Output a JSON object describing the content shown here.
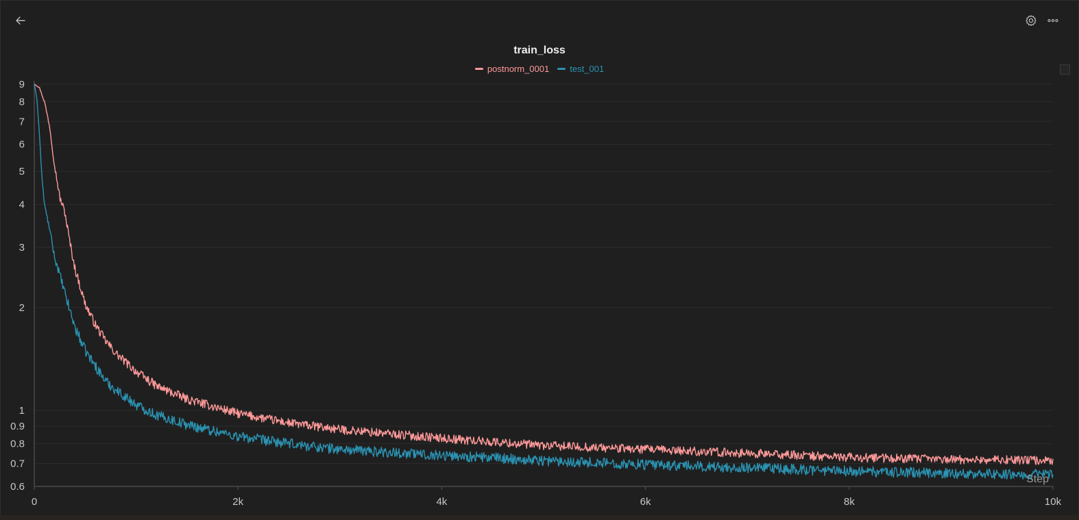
{
  "header": {
    "back_icon": "arrow-left-icon",
    "settings_icon": "gear-icon",
    "more_icon": "more-horizontal-icon"
  },
  "chart_data": {
    "type": "line",
    "title": "train_loss",
    "xlabel": "Step",
    "ylabel": "",
    "yscale": "log",
    "xlim": [
      0,
      10000
    ],
    "ylim": [
      0.6,
      9.2
    ],
    "x_ticks": [
      0,
      2000,
      4000,
      6000,
      8000,
      10000
    ],
    "x_tick_labels": [
      "0",
      "2k",
      "4k",
      "6k",
      "8k",
      "10k"
    ],
    "y_ticks": [
      0.6,
      0.7,
      0.8,
      0.9,
      1,
      2,
      3,
      4,
      5,
      6,
      7,
      8,
      9
    ],
    "y_tick_labels": [
      "0.6",
      "0.7",
      "0.8",
      "0.9",
      "1",
      "2",
      "3",
      "4",
      "5",
      "6",
      "7",
      "8",
      "9"
    ],
    "grid": true,
    "legend_position": "top-center",
    "series": [
      {
        "name": "postnorm_0001",
        "color": "#ff9a9a",
        "noise": 0.03,
        "x": [
          0,
          50,
          100,
          150,
          200,
          250,
          300,
          350,
          400,
          500,
          600,
          700,
          800,
          1000,
          1200,
          1500,
          2000,
          2500,
          3000,
          4000,
          5000,
          6000,
          7000,
          8000,
          9000,
          10000
        ],
        "y": [
          9.0,
          8.8,
          8.0,
          6.8,
          5.2,
          4.2,
          3.8,
          3.1,
          2.6,
          2.05,
          1.78,
          1.6,
          1.47,
          1.3,
          1.18,
          1.08,
          0.98,
          0.92,
          0.88,
          0.83,
          0.79,
          0.77,
          0.75,
          0.73,
          0.72,
          0.715
        ]
      },
      {
        "name": "test_001",
        "color": "#2b93b3",
        "noise": 0.035,
        "x": [
          0,
          25,
          50,
          75,
          100,
          150,
          200,
          250,
          300,
          400,
          500,
          600,
          700,
          800,
          1000,
          1200,
          1500,
          2000,
          2500,
          3000,
          4000,
          5000,
          6000,
          7000,
          8000,
          9000,
          10000
        ],
        "y": [
          9.0,
          8.2,
          6.5,
          4.8,
          4.0,
          3.4,
          2.8,
          2.5,
          2.2,
          1.75,
          1.5,
          1.35,
          1.22,
          1.15,
          1.04,
          0.97,
          0.91,
          0.84,
          0.8,
          0.77,
          0.74,
          0.715,
          0.695,
          0.68,
          0.665,
          0.655,
          0.65
        ]
      }
    ]
  }
}
